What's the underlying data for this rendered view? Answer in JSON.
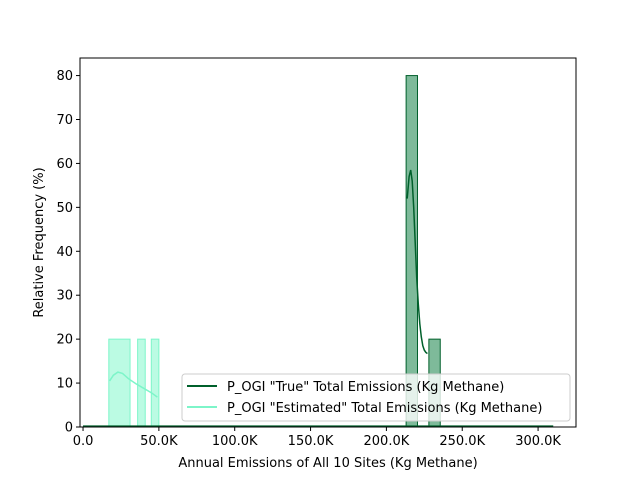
{
  "chart_data": {
    "type": "bar",
    "title": "",
    "xlabel": "Annual Emissions of All 10 Sites (Kg Methane)",
    "ylabel": "Relative Frequency (%)",
    "xlim": [
      -2000,
      325000
    ],
    "ylim": [
      0,
      84
    ],
    "xticks": [
      0,
      50000,
      100000,
      150000,
      200000,
      250000,
      300000
    ],
    "xtick_labels": [
      "0.0",
      "50.0K",
      "100.0K",
      "150.0K",
      "200.0K",
      "250.0K",
      "300.0K"
    ],
    "yticks": [
      0,
      10,
      20,
      30,
      40,
      50,
      60,
      70,
      80
    ],
    "ytick_labels": [
      "0",
      "10",
      "20",
      "30",
      "40",
      "50",
      "60",
      "70",
      "80"
    ],
    "grid": false,
    "legend_position": "lower-right",
    "series": [
      {
        "name": "P_OGI \"True\" Total Emissions (Kg Methane)",
        "line_color": "#00602b",
        "fill_color": "#5ea981",
        "bins": [
          {
            "x0": 213000,
            "x1": 220500,
            "value": 80
          },
          {
            "x0": 220500,
            "x1": 228000,
            "value": 0
          },
          {
            "x0": 228000,
            "x1": 235500,
            "value": 20
          }
        ],
        "kde": [
          [
            213700,
            52
          ],
          [
            215000,
            57
          ],
          [
            216000,
            58.5
          ],
          [
            217000,
            56
          ],
          [
            218000,
            50
          ],
          [
            219000,
            42
          ],
          [
            220000,
            34
          ],
          [
            221000,
            28
          ],
          [
            222000,
            23.5
          ],
          [
            223000,
            20.5
          ],
          [
            224000,
            18.5
          ],
          [
            225000,
            17.5
          ],
          [
            226000,
            17
          ],
          [
            227000,
            16.7
          ]
        ]
      },
      {
        "name": "P_OGI \"Estimated\" Total Emissions (Kg Methane)",
        "line_color": "#7df5c9",
        "fill_color": "#b7fbe1",
        "bins": [
          {
            "x0": 17000,
            "x1": 31000,
            "value": 20
          },
          {
            "x0": 36000,
            "x1": 41000,
            "value": 20
          },
          {
            "x0": 45000,
            "x1": 50000,
            "value": 20
          }
        ],
        "kde": [
          [
            17500,
            10.5
          ],
          [
            20000,
            11.8
          ],
          [
            23000,
            12.5
          ],
          [
            26000,
            12.2
          ],
          [
            30000,
            11
          ],
          [
            35000,
            9.8
          ],
          [
            40000,
            8.8
          ],
          [
            45000,
            7.8
          ],
          [
            49000,
            6.8
          ]
        ]
      }
    ],
    "tail_line": {
      "x0": 0,
      "x1": 310000,
      "value": 0.2
    }
  }
}
